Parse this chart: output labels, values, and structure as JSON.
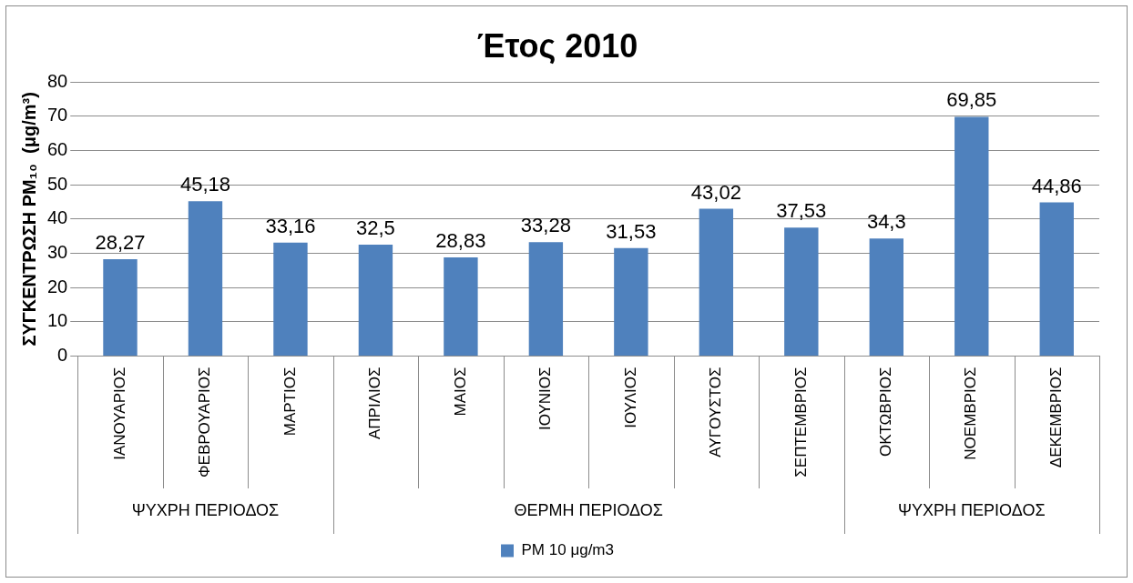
{
  "chart_data": {
    "type": "bar",
    "title": "Έτος 2010",
    "ylabel": "ΣΥΓΚΕΝΤΡΩΣΗ PM₁₀  (μg/m³)",
    "categories": [
      "ΙΑΝΟΥΑΡΙΟΣ",
      "ΦΕΒΡΟΥΑΡΙΟΣ",
      "ΜΑΡΤΙΟΣ",
      "ΑΠΡΙΛΙΟΣ",
      "ΜΑΙΟΣ",
      "ΙΟΥΝΙΟΣ",
      "ΙΟΥΛΙΟΣ",
      "ΑΥΓΟΥΣΤΟΣ",
      "ΣΕΠΤΕΜΒΡΙΟΣ",
      "ΟΚΤΩΒΡΙΟΣ",
      "ΝΟΕΜΒΡΙΟΣ",
      "ΔΕΚΕΜΒΡΙΟΣ"
    ],
    "series": [
      {
        "name": "PM 10 μg/m3",
        "color": "#4f81bd",
        "values": [
          28.27,
          45.18,
          33.16,
          32.5,
          28.83,
          33.28,
          31.53,
          43.02,
          37.53,
          34.3,
          69.85,
          44.86
        ],
        "value_labels": [
          "28,27",
          "45,18",
          "33,16",
          "32,5",
          "28,83",
          "33,28",
          "31,53",
          "43,02",
          "37,53",
          "34,3",
          "69,85",
          "44,86"
        ]
      }
    ],
    "annotations": [
      "ΨΥΧΡΗ ΠΕΡΙΟΔΟΣ",
      "ΘΕΡΜΗ ΠΕΡΙΟΔΟΣ",
      "ΨΥΧΡΗ ΠΕΡΙΟΔΟΣ"
    ],
    "ylim": [
      0,
      80
    ],
    "yticks": [
      0,
      10,
      20,
      30,
      40,
      50,
      60,
      70,
      80
    ],
    "grid": "y",
    "legend": "bottom"
  }
}
